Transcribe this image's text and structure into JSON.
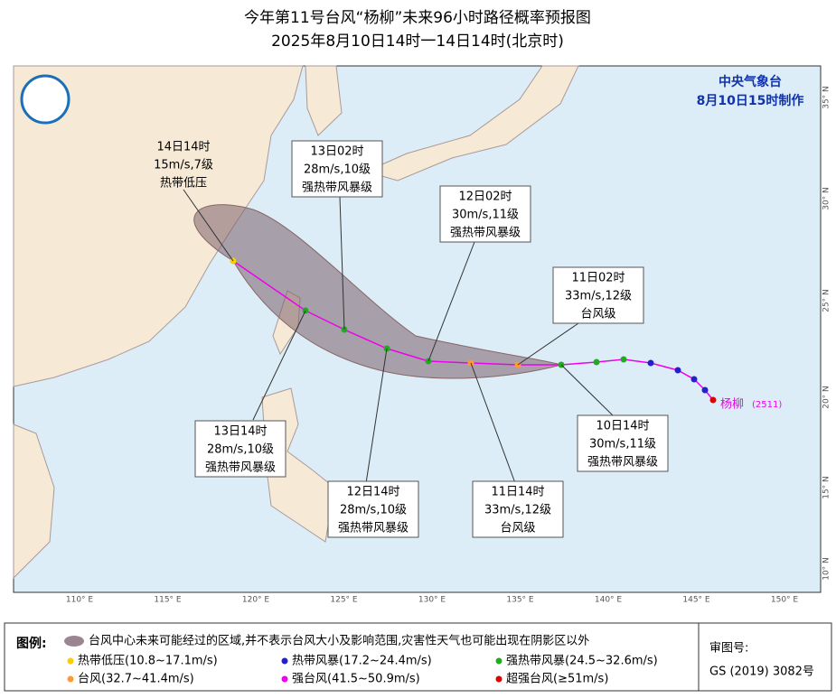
{
  "header": {
    "title": "今年第11号台风“杨柳”未来96小时路径概率预报图",
    "subtitle": "2025年8月10日14时一14日14时(北京时)"
  },
  "agency": {
    "name": "中央气象台",
    "made_time": "8月10日15时制作"
  },
  "callouts": [
    {
      "lines": [
        "14日14时",
        "15m/s,7级",
        "热带低压"
      ]
    },
    {
      "lines": [
        "13日02时",
        "28m/s,10级",
        "强热带风暴级"
      ]
    },
    {
      "lines": [
        "12日02时",
        "30m/s,11级",
        "强热带风暴级"
      ]
    },
    {
      "lines": [
        "11日02时",
        "33m/s,12级",
        "台风级"
      ]
    },
    {
      "lines": [
        "13日14时",
        "28m/s,10级",
        "强热带风暴级"
      ]
    },
    {
      "lines": [
        "12日14时",
        "28m/s,10级",
        "强热带风暴级"
      ]
    },
    {
      "lines": [
        "11日14时",
        "33m/s,12级",
        "台风级"
      ]
    },
    {
      "lines": [
        "10日14时",
        "30m/s,11级",
        "强热带风暴级"
      ]
    }
  ],
  "storm": {
    "name": "杨柳",
    "id": "(2511)"
  },
  "lon_labels": [
    "110° E",
    "115° E",
    "120° E",
    "125° E",
    "130° E",
    "135° E",
    "140° E",
    "145° E",
    "150° E"
  ],
  "lat_labels": [
    "35° N",
    "30° N",
    "25° N",
    "20° N",
    "15° N",
    "10° N"
  ],
  "legend": {
    "title": "图例:",
    "cone": "台风中心未来可能经过的区域,并不表示台风大小及影响范围,灾害性天气也可能出现在阴影区以外",
    "items": [
      "热带低压(10.8~17.1m/s)",
      "热带风暴(17.2~24.4m/s)",
      "强热带风暴(24.5~32.6m/s)",
      "台风(32.7~41.4m/s)",
      "强台风(41.5~50.9m/s)",
      "超强台风(≥51m/s)"
    ]
  },
  "review": {
    "label": "审图号:",
    "number": "GS (2019) 3082号"
  }
}
